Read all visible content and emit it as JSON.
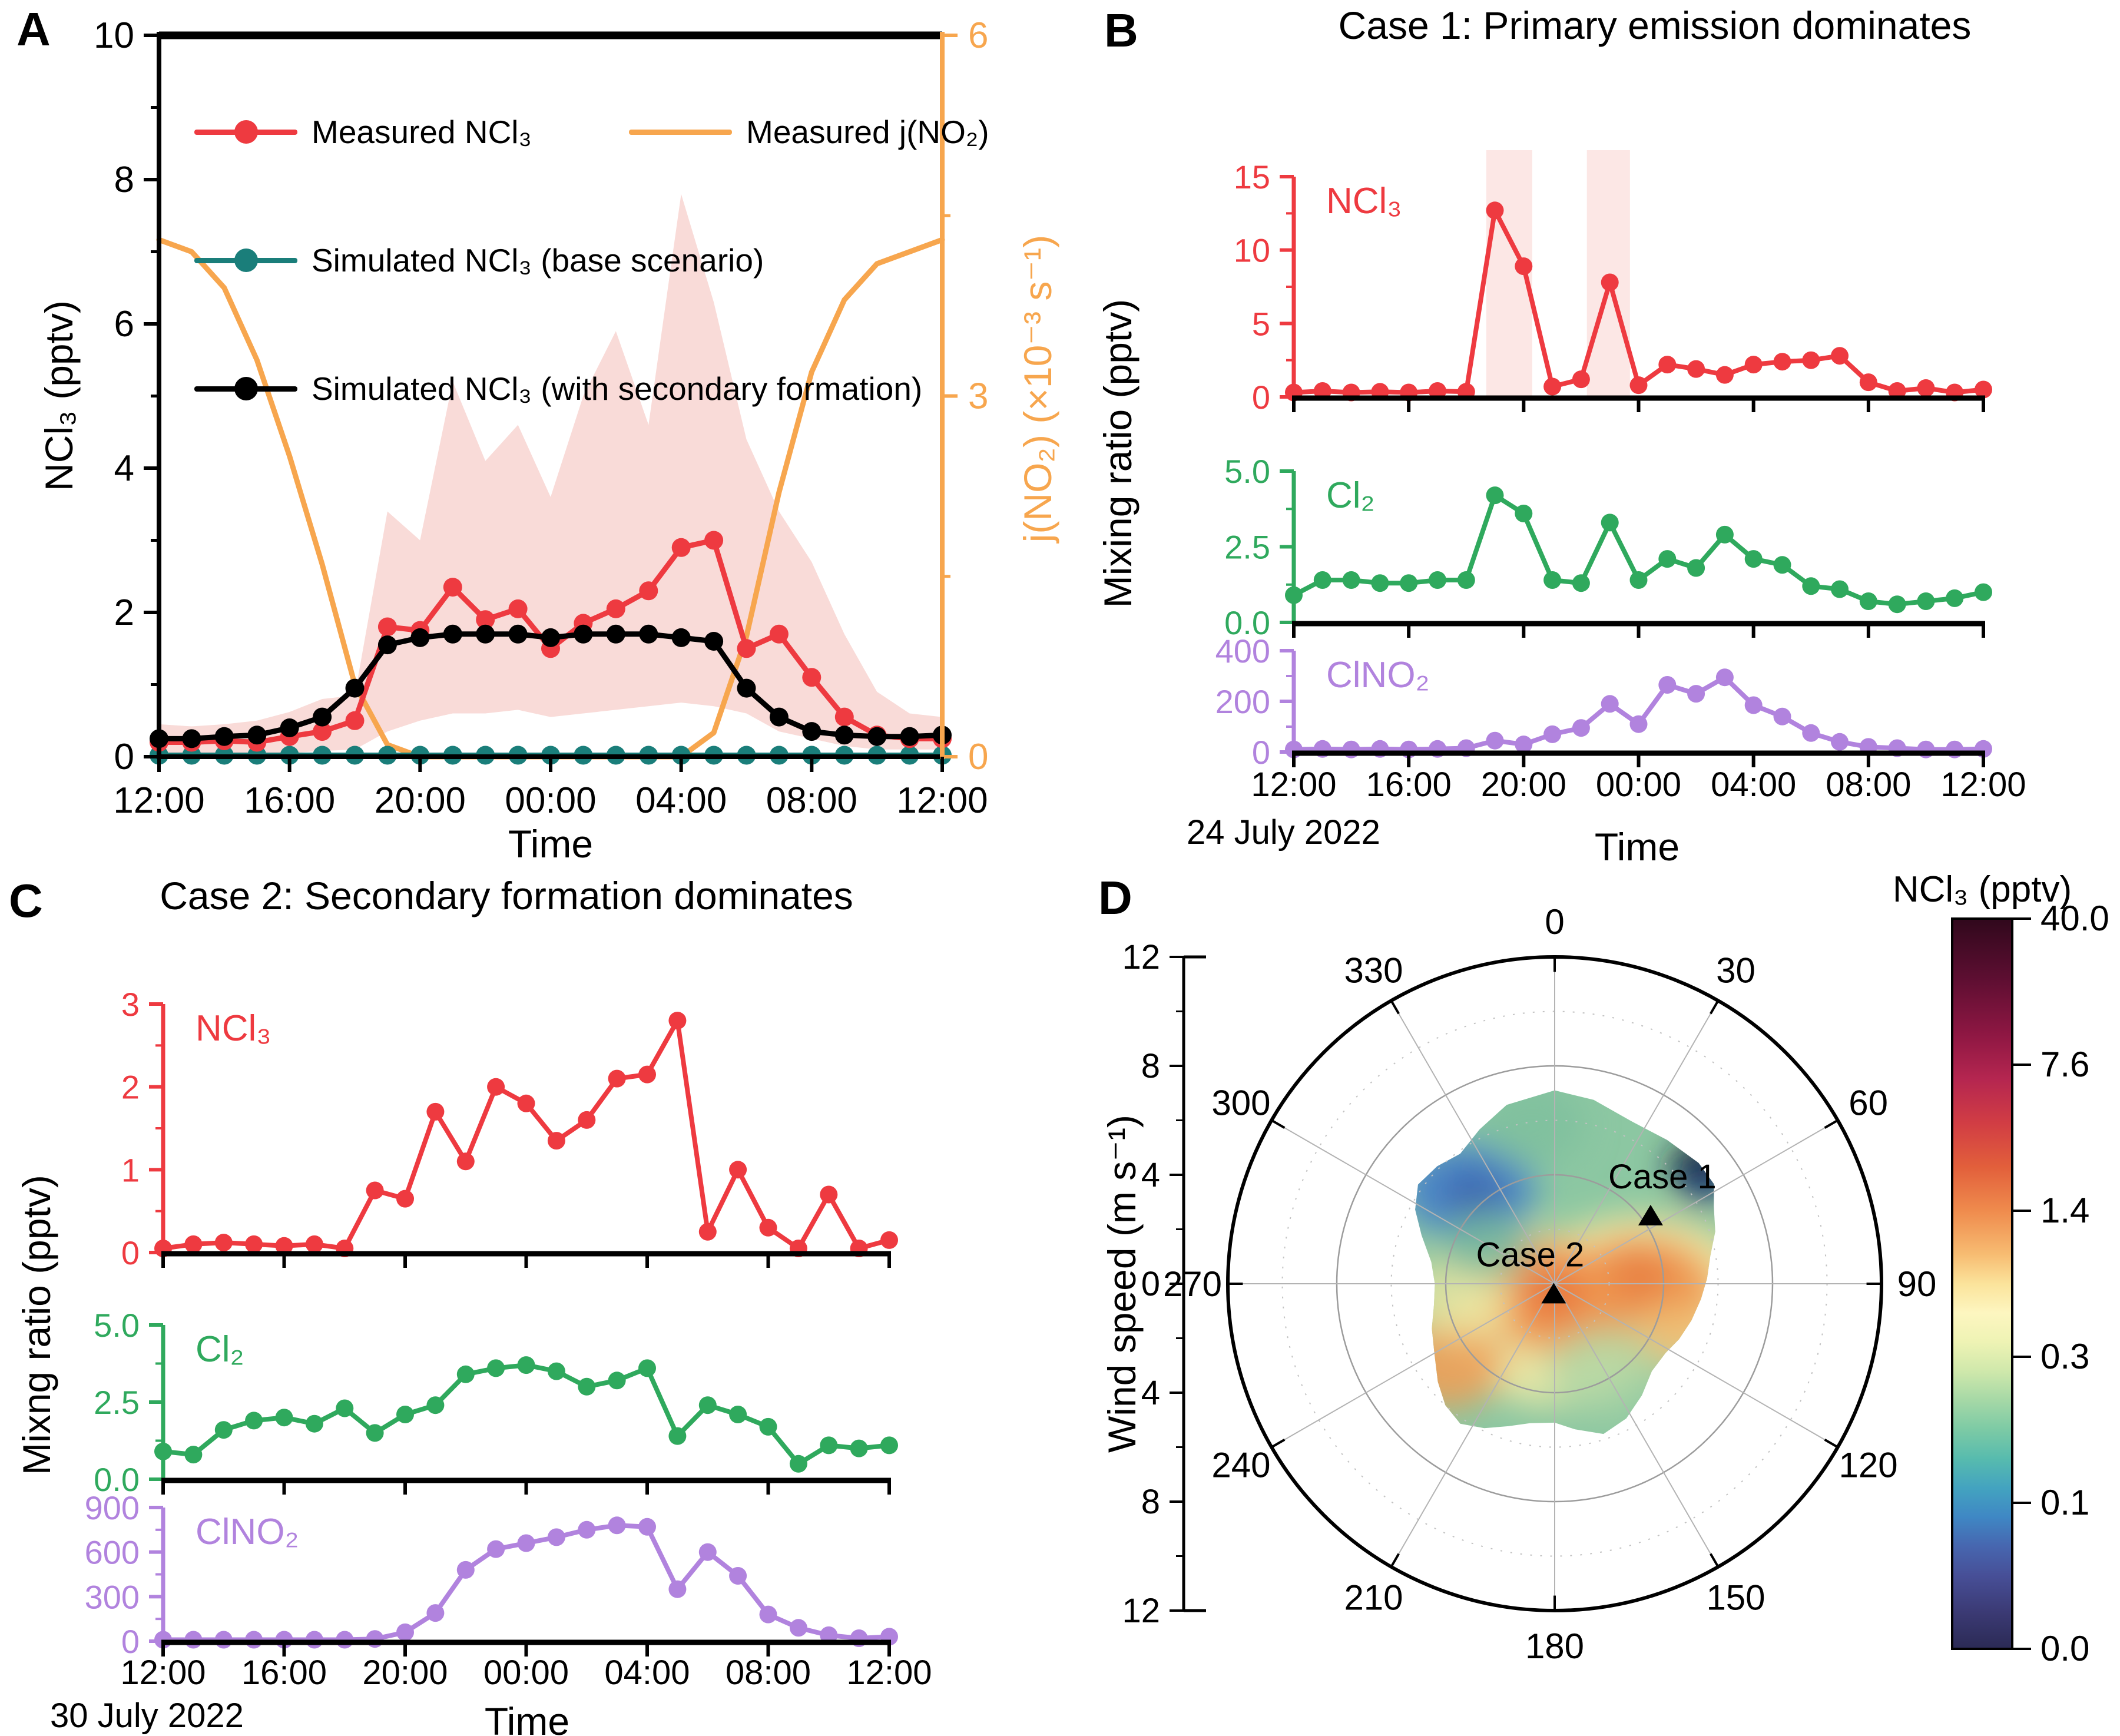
{
  "page": {
    "background": "#ffffff"
  },
  "colors": {
    "measured_red": "#ee3a40",
    "simulated_teal": "#1a7e7a",
    "simulated_black": "#000000",
    "jno2_orange": "#f7a64e",
    "pink_band": "#f9dbd8",
    "cl2_green": "#2fa95d",
    "clno2_purple": "#b183de"
  },
  "panel_a": {
    "label": "A",
    "y_label": "NCl₃ (pptv)",
    "y2_label": "j(NO₂) (×10⁻³ s⁻¹)",
    "x_label": "Time",
    "x_ticks": [
      "12:00",
      "16:00",
      "20:00",
      "00:00",
      "04:00",
      "08:00",
      "12:00"
    ],
    "y_ticks": [
      "0",
      "2",
      "4",
      "6",
      "8",
      "10"
    ],
    "y2_ticks": [
      "0",
      "3",
      "6"
    ],
    "legend": [
      {
        "label": "Measured NCl₃",
        "color": "#ee3a40",
        "marker": "circle"
      },
      {
        "label": "Measured j(NO₂)",
        "color": "#f7a64e",
        "marker": "line"
      },
      {
        "label": "Simulated NCl₃ (base scenario)",
        "color": "#1a7e7a",
        "marker": "circle"
      },
      {
        "label": "Simulated NCl₃ (with secondary formation)",
        "color": "#000000",
        "marker": "circle"
      }
    ]
  },
  "panel_b": {
    "label": "B",
    "title": "Case 1: Primary emission dominates",
    "y_label": "Mixing ratio (pptv)",
    "x_label": "Time",
    "date": "24 July 2022",
    "x_ticks": [
      "12:00",
      "16:00",
      "20:00",
      "00:00",
      "04:00",
      "08:00",
      "12:00"
    ],
    "subplots": [
      {
        "species": "NCl₃",
        "color": "#ee3a40",
        "y_ticks": [
          "0",
          "5",
          "10",
          "15"
        ]
      },
      {
        "species": "Cl₂",
        "color": "#2fa95d",
        "y_ticks": [
          "0.0",
          "2.5",
          "5.0"
        ]
      },
      {
        "species": "ClNO₂",
        "color": "#b183de",
        "y_ticks": [
          "0",
          "200",
          "400"
        ]
      }
    ]
  },
  "panel_c": {
    "label": "C",
    "title": "Case 2: Secondary formation dominates",
    "y_label": "Mixng ratio (pptv)",
    "x_label": "Time",
    "date": "30 July 2022",
    "x_ticks": [
      "12:00",
      "16:00",
      "20:00",
      "00:00",
      "04:00",
      "08:00",
      "12:00"
    ],
    "subplots": [
      {
        "species": "NCl₃",
        "color": "#ee3a40",
        "y_ticks": [
          "0",
          "1",
          "2",
          "3"
        ]
      },
      {
        "species": "Cl₂",
        "color": "#2fa95d",
        "y_ticks": [
          "0.0",
          "2.5",
          "5.0"
        ]
      },
      {
        "species": "ClNO₂",
        "color": "#b183de",
        "y_ticks": [
          "0",
          "300",
          "600",
          "900"
        ]
      }
    ]
  },
  "panel_d": {
    "label": "D",
    "radial_label": "Wind speed (m s⁻¹)",
    "speed_ticks": [
      "12",
      "8",
      "4",
      "0",
      "4",
      "8",
      "12"
    ],
    "angle_ticks": [
      "0",
      "30",
      "60",
      "90",
      "120",
      "150",
      "180",
      "210",
      "240",
      "270",
      "300",
      "330"
    ],
    "colorbar": {
      "title": "NCl₃ (pptv)",
      "ticks": [
        "40.0",
        "7.6",
        "1.4",
        "0.3",
        "0.1",
        "0.0"
      ]
    },
    "markers": [
      {
        "label": "Case 1",
        "wind_dir_deg": 55,
        "wind_speed": 4.3
      },
      {
        "label": "Case 2",
        "wind_dir_deg": 185,
        "wind_speed": 0.4
      }
    ]
  },
  "chart_data": [
    {
      "type": "line",
      "panel": "A",
      "x_start": "12:00",
      "x_hours": [
        0,
        1,
        2,
        3,
        4,
        5,
        6,
        7,
        8,
        9,
        10,
        11,
        12,
        13,
        14,
        15,
        16,
        17,
        18,
        19,
        20,
        21,
        22,
        23,
        24
      ],
      "x_ticklabels": [
        "12:00",
        "16:00",
        "20:00",
        "00:00",
        "04:00",
        "08:00",
        "12:00"
      ],
      "ylabel": "NCl₃ (pptv)",
      "ylim": [
        0,
        10
      ],
      "y2label": "j(NO₂) (×10⁻³ s⁻¹)",
      "y2lim": [
        0,
        6
      ],
      "series": [
        {
          "name": "Measured NCl₃",
          "axis": "left",
          "color": "#ee3a40",
          "values": [
            0.2,
            0.2,
            0.22,
            0.2,
            0.28,
            0.35,
            0.5,
            1.8,
            1.75,
            2.35,
            1.9,
            2.05,
            1.5,
            1.85,
            2.05,
            2.3,
            2.9,
            3.0,
            1.5,
            1.7,
            1.1,
            0.55,
            0.3,
            0.25,
            0.25
          ]
        },
        {
          "name": "Simulated NCl₃ (base scenario)",
          "axis": "left",
          "color": "#1a7e7a",
          "values": [
            0.02,
            0.02,
            0.02,
            0.02,
            0.02,
            0.02,
            0.02,
            0.02,
            0.02,
            0.02,
            0.02,
            0.02,
            0.02,
            0.02,
            0.02,
            0.02,
            0.02,
            0.02,
            0.02,
            0.02,
            0.02,
            0.02,
            0.02,
            0.02,
            0.02
          ]
        },
        {
          "name": "Simulated NCl₃ (with secondary formation)",
          "axis": "left",
          "color": "#000000",
          "values": [
            0.25,
            0.25,
            0.28,
            0.3,
            0.4,
            0.55,
            0.95,
            1.55,
            1.65,
            1.7,
            1.7,
            1.7,
            1.65,
            1.7,
            1.7,
            1.7,
            1.65,
            1.6,
            0.95,
            0.55,
            0.35,
            0.3,
            0.28,
            0.28,
            0.3
          ]
        },
        {
          "name": "Measured j(NO₂)",
          "axis": "right",
          "color": "#f7a64e",
          "values": [
            4.3,
            4.2,
            3.9,
            3.3,
            2.5,
            1.6,
            0.6,
            0.1,
            0,
            0,
            0,
            0,
            0,
            0,
            0,
            0,
            0,
            0.2,
            1.0,
            2.2,
            3.2,
            3.8,
            4.1,
            4.2,
            4.3
          ]
        }
      ],
      "band": {
        "name": "Measured NCl₃ uncertainty",
        "color": "#f9dbd8",
        "upper": [
          0.45,
          0.42,
          0.45,
          0.5,
          0.62,
          0.8,
          0.85,
          3.4,
          3.0,
          5.2,
          4.1,
          4.6,
          3.6,
          5.0,
          5.9,
          4.6,
          7.8,
          6.3,
          4.4,
          3.4,
          2.7,
          1.7,
          0.9,
          0.6,
          0.55
        ],
        "lower": [
          0.05,
          0.05,
          0.05,
          0.05,
          0.05,
          0.08,
          0.1,
          0.35,
          0.5,
          0.6,
          0.6,
          0.65,
          0.55,
          0.6,
          0.65,
          0.7,
          0.75,
          0.7,
          0.6,
          0.35,
          0.25,
          0.15,
          0.1,
          0.1,
          0.1
        ]
      }
    },
    {
      "type": "line",
      "panel": "B",
      "title": "Case 1: Primary emission dominates",
      "date": "24 July 2022",
      "x_start": "12:00",
      "x_hours": [
        0,
        1,
        2,
        3,
        4,
        5,
        6,
        7,
        8,
        9,
        10,
        11,
        12,
        13,
        14,
        15,
        16,
        17,
        18,
        19,
        20,
        21,
        22,
        23,
        24
      ],
      "x_ticklabels": [
        "12:00",
        "16:00",
        "20:00",
        "00:00",
        "04:00",
        "08:00",
        "12:00"
      ],
      "highlight_bands_hours": [
        [
          6.7,
          8.3
        ],
        [
          10.2,
          11.7
        ]
      ],
      "series": [
        {
          "name": "NCl₃",
          "ylim": [
            0,
            15
          ],
          "color": "#ee3a40",
          "values": [
            0.3,
            0.4,
            0.3,
            0.35,
            0.3,
            0.4,
            0.35,
            12.7,
            8.9,
            0.7,
            1.2,
            7.8,
            0.8,
            2.2,
            1.9,
            1.5,
            2.2,
            2.4,
            2.5,
            2.8,
            1.0,
            0.4,
            0.6,
            0.3,
            0.5
          ]
        },
        {
          "name": "Cl₂",
          "ylim": [
            0,
            5
          ],
          "color": "#2fa95d",
          "values": [
            0.9,
            1.4,
            1.4,
            1.3,
            1.3,
            1.4,
            1.4,
            4.2,
            3.6,
            1.4,
            1.3,
            3.3,
            1.4,
            2.1,
            1.8,
            2.9,
            2.1,
            1.9,
            1.2,
            1.1,
            0.7,
            0.6,
            0.7,
            0.8,
            1.0
          ]
        },
        {
          "name": "ClNO₂",
          "ylim": [
            0,
            400
          ],
          "color": "#b183de",
          "values": [
            10,
            12,
            10,
            12,
            10,
            12,
            15,
            45,
            30,
            70,
            95,
            190,
            110,
            265,
            230,
            295,
            185,
            140,
            75,
            40,
            20,
            15,
            10,
            10,
            12
          ]
        }
      ]
    },
    {
      "type": "line",
      "panel": "C",
      "title": "Case 2: Secondary formation dominates",
      "date": "30 July 2022",
      "x_start": "12:00",
      "x_hours": [
        0,
        1,
        2,
        3,
        4,
        5,
        6,
        7,
        8,
        9,
        10,
        11,
        12,
        13,
        14,
        15,
        16,
        17,
        18,
        19,
        20,
        21,
        22,
        23,
        24
      ],
      "x_ticklabels": [
        "12:00",
        "16:00",
        "20:00",
        "00:00",
        "04:00",
        "08:00",
        "12:00"
      ],
      "series": [
        {
          "name": "NCl₃",
          "ylim": [
            0,
            3
          ],
          "color": "#ee3a40",
          "values": [
            0.05,
            0.1,
            0.12,
            0.1,
            0.08,
            0.1,
            0.05,
            0.75,
            0.65,
            1.7,
            1.1,
            2.0,
            1.8,
            1.35,
            1.6,
            2.1,
            2.15,
            2.8,
            0.25,
            1.0,
            0.3,
            0.05,
            0.7,
            0.05,
            0.15
          ]
        },
        {
          "name": "Cl₂",
          "ylim": [
            0,
            5
          ],
          "color": "#2fa95d",
          "values": [
            0.9,
            0.8,
            1.6,
            1.9,
            2.0,
            1.8,
            2.3,
            1.5,
            2.1,
            2.4,
            3.4,
            3.6,
            3.7,
            3.5,
            3.0,
            3.2,
            3.6,
            1.4,
            2.4,
            2.1,
            1.7,
            0.5,
            1.1,
            1.0,
            1.1
          ]
        },
        {
          "name": "ClNO₂",
          "ylim": [
            0,
            900
          ],
          "color": "#b183de",
          "values": [
            10,
            10,
            10,
            10,
            10,
            10,
            10,
            15,
            60,
            190,
            480,
            620,
            660,
            700,
            750,
            780,
            770,
            350,
            600,
            440,
            180,
            90,
            40,
            20,
            30
          ]
        }
      ]
    },
    {
      "type": "heatmap",
      "panel": "D",
      "projection": "polar",
      "r_axis": {
        "label": "Wind speed (m s⁻¹)",
        "max": 12,
        "rings_solid": [
          4,
          8,
          12
        ],
        "rings_dotted": [
          2,
          6,
          10
        ]
      },
      "theta_ticks_deg": [
        0,
        30,
        60,
        90,
        120,
        150,
        180,
        210,
        240,
        270,
        300,
        330
      ],
      "colorbar": {
        "title": "NCl₃ (pptv)",
        "tick_values": [
          40.0,
          7.6,
          1.4,
          0.3,
          0.1,
          0.0
        ]
      },
      "cases": [
        {
          "label": "Case 1",
          "wind_dir_deg": 55,
          "wind_speed": 4.3,
          "ncl3_pptv_approx": 1.8
        },
        {
          "label": "Case 2",
          "wind_dir_deg": 185,
          "wind_speed": 0.4,
          "ncl3_pptv_approx": 1.8
        }
      ],
      "field_summary": [
        {
          "region": "center calm (Case 2)",
          "ncl3_pptv": 1.8
        },
        {
          "region": "E 60-110 deg, 2-5 m/s (Case 1)",
          "ncl3_pptv": 1.5
        },
        {
          "region": "SW 235 deg, 5 m/s",
          "ncl3_pptv": 1.0
        },
        {
          "region": "NW 315 deg, 5 m/s",
          "ncl3_pptv": 0.1
        },
        {
          "region": "NE edge 52 deg, 7 m/s",
          "ncl3_pptv": 0.0
        },
        {
          "region": "background of sampled area",
          "ncl3_pptv": 0.3
        }
      ]
    }
  ]
}
